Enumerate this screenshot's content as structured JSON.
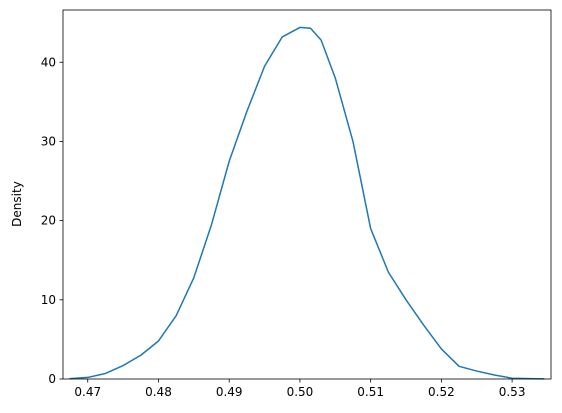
{
  "chart_data": {
    "type": "line",
    "title": "",
    "xlabel": "",
    "ylabel": "Density",
    "xlim": [
      0.4665,
      0.5355
    ],
    "ylim": [
      0,
      46.6
    ],
    "xticks": [
      0.47,
      0.48,
      0.49,
      0.5,
      0.51,
      0.52,
      0.53
    ],
    "xtick_labels": [
      "0.47",
      "0.48",
      "0.49",
      "0.50",
      "0.51",
      "0.52",
      "0.53"
    ],
    "yticks": [
      0,
      10,
      20,
      30,
      40
    ],
    "ytick_labels": [
      "0",
      "10",
      "20",
      "30",
      "40"
    ],
    "grid": false,
    "legend": "none",
    "series": [
      {
        "color": "#1f77b4",
        "x": [
          0.4675,
          0.47,
          0.4725,
          0.475,
          0.4775,
          0.48,
          0.4825,
          0.485,
          0.4875,
          0.49,
          0.4925,
          0.495,
          0.4975,
          0.5,
          0.5015,
          0.503,
          0.505,
          0.5075,
          0.51,
          0.5125,
          0.515,
          0.5175,
          0.52,
          0.5225,
          0.525,
          0.5275,
          0.53,
          0.5325,
          0.5345
        ],
        "y": [
          0.05,
          0.2,
          0.7,
          1.7,
          3.0,
          4.8,
          8.0,
          12.8,
          19.5,
          27.5,
          33.8,
          39.5,
          43.2,
          44.4,
          44.3,
          42.8,
          38.0,
          30.0,
          19.0,
          13.5,
          10.0,
          6.8,
          3.8,
          1.6,
          1.0,
          0.5,
          0.1,
          0.04,
          0.02
        ]
      }
    ]
  }
}
